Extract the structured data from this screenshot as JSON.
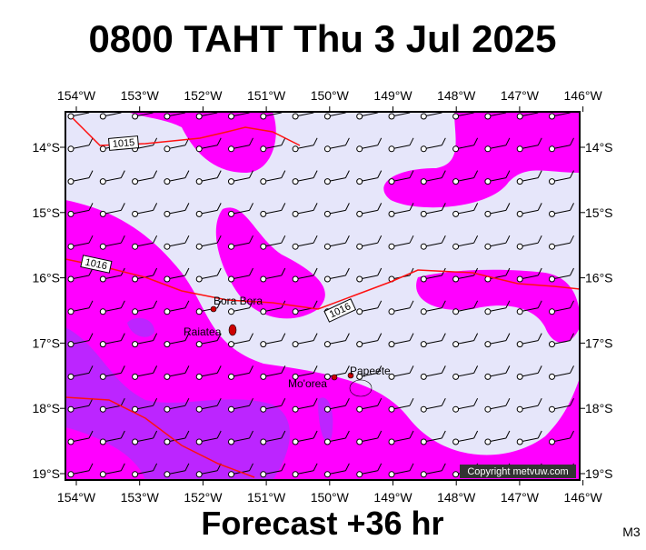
{
  "header": {
    "title": "0800 TAHT Thu 3 Jul 2025"
  },
  "map": {
    "lon_labels": [
      "154°W",
      "153°W",
      "152°W",
      "151°W",
      "150°W",
      "149°W",
      "148°W",
      "147°W",
      "146°W"
    ],
    "lat_labels": [
      "14°S",
      "15°S",
      "16°S",
      "17°S",
      "18°S",
      "19°S"
    ],
    "places": [
      "Bora Bora",
      "Raiatea",
      "Mo'orea",
      "Papeete"
    ],
    "isobar_labels": [
      "1015",
      "1016",
      "1016"
    ],
    "copyright": "Copyright metvuw.com"
  },
  "footer": {
    "forecast": "Forecast +36 hr",
    "code": "M3"
  }
}
